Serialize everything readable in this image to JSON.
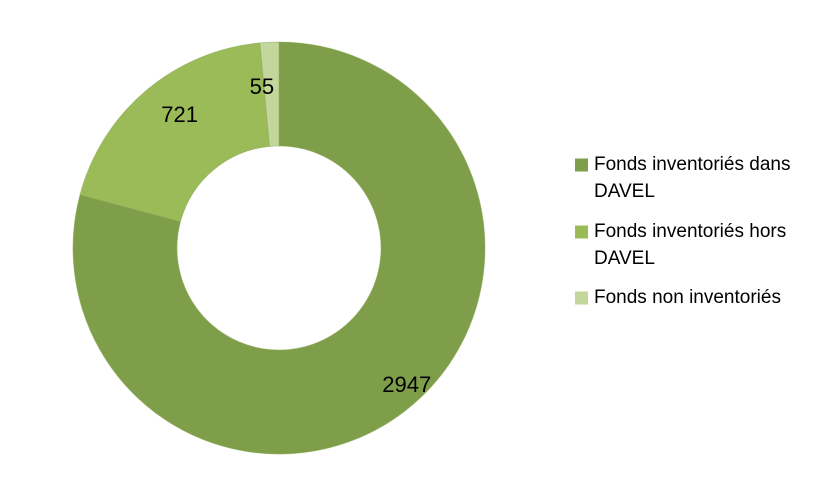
{
  "chart_data": {
    "type": "pie",
    "subtype": "doughnut",
    "title": "",
    "categories": [
      "Fonds inventoriés dans DAVEL",
      "Fonds inventoriés hors DAVEL",
      "Fonds non inventoriés"
    ],
    "values": [
      2947,
      721,
      55
    ],
    "data_labels": [
      "2947",
      "721",
      "55"
    ],
    "colors": [
      "#7f9e49",
      "#9bbb59",
      "#c3d69b"
    ],
    "legend": {
      "position": "right",
      "entries": [
        {
          "lines": [
            "Fonds inventoriés dans",
            "DAVEL"
          ]
        },
        {
          "lines": [
            "Fonds inventoriés hors",
            "DAVEL"
          ]
        },
        {
          "lines": [
            "Fonds non inventoriés"
          ]
        }
      ]
    }
  }
}
